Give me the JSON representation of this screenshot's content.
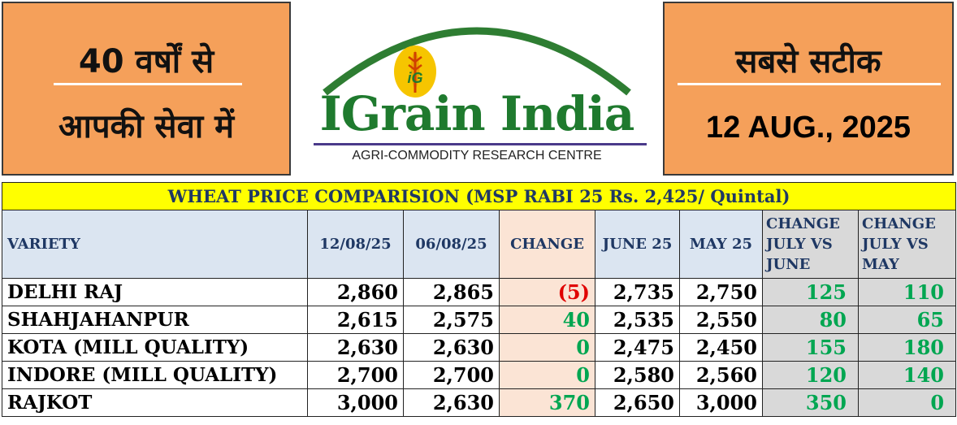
{
  "header": {
    "left_line1": "40 वर्षों से",
    "left_line2": "आपकी सेवा में",
    "right_line1": "सबसे सटीक",
    "date": "12 AUG., 2025",
    "brand": "IGrain India",
    "logo_badge": "iG",
    "tagline": "AGRI-COMMODITY RESEARCH CENTRE",
    "colors": {
      "panel": "#f5a05a",
      "brand_green": "#1f7a2e",
      "arc_green": "#2e7d32",
      "logo_yellow": "#f6c500"
    }
  },
  "table": {
    "title": "WHEAT PRICE COMPARISION (MSP RABI 25 Rs. 2,425/ Quintal)",
    "columns": [
      "VARIETY",
      "12/08/25",
      "06/08/25",
      "CHANGE",
      "JUNE 25",
      "MAY 25",
      "CHANGE JULY VS JUNE",
      "CHANGE JULY VS MAY"
    ],
    "rows": [
      {
        "variety": "DELHI RAJ",
        "d1": "2,860",
        "d2": "2,865",
        "change": "(5)",
        "june": "2,735",
        "may": "2,750",
        "vs_june": "125",
        "vs_may": "110"
      },
      {
        "variety": "SHAHJAHANPUR",
        "d1": "2,615",
        "d2": "2,575",
        "change": "40",
        "june": "2,535",
        "may": "2,550",
        "vs_june": "80",
        "vs_may": "65"
      },
      {
        "variety": "KOTA (MILL QUALITY)",
        "d1": "2,630",
        "d2": "2,630",
        "change": "0",
        "june": "2,475",
        "may": "2,450",
        "vs_june": "155",
        "vs_may": "180"
      },
      {
        "variety": "INDORE (MILL QUALITY)",
        "d1": "2,700",
        "d2": "2,700",
        "change": "0",
        "june": "2,580",
        "may": "2,560",
        "vs_june": "120",
        "vs_may": "140"
      },
      {
        "variety": "RAJKOT",
        "d1": "3,000",
        "d2": "2,630",
        "change": "370",
        "june": "2,650",
        "may": "3,000",
        "vs_june": "350",
        "vs_may": "0"
      }
    ],
    "colors": {
      "title_bg": "#ffff00",
      "header_bg": "#dbe5f1",
      "change_bg": "#fbe4d5",
      "grey_bg": "#d9d9d9",
      "positive": "#00a651",
      "negative": "#e00000"
    }
  }
}
